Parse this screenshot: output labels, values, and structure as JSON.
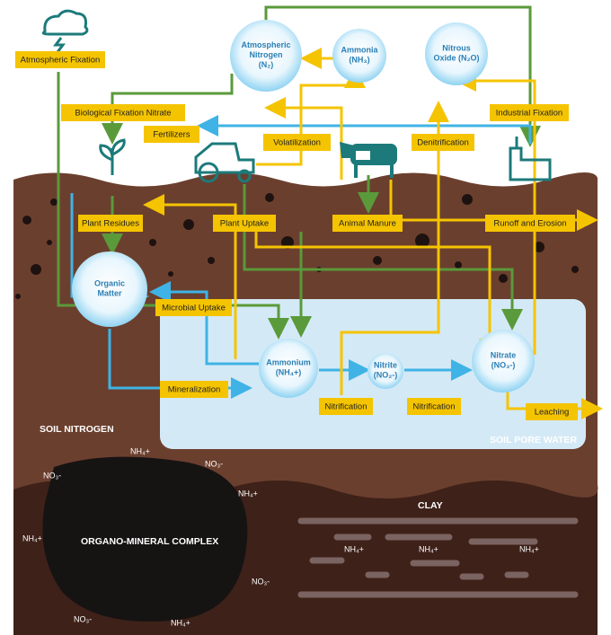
{
  "nodes": [
    {
      "label": "Atmospheric Nitrogen (N₂)"
    },
    {
      "label": "Ammonia (NH₃)"
    },
    {
      "label": "Nitrous Oxide (N₂O)"
    },
    {
      "label": "Organic Matter"
    },
    {
      "label": "Ammonium (NH₄+)"
    },
    {
      "label": "Nitrite (NO₂-)"
    },
    {
      "label": "Nitrate (NO₃-)"
    }
  ],
  "processes": [
    "Atmospheric Fixation",
    "Biological Fixation Nitrate",
    "Fertilizers",
    "Volatilization",
    "Denitrification",
    "Industrial Fixation",
    "Plant Residues",
    "Plant Uptake",
    "Animal Manure",
    "Runoff and Erosion",
    "Microbial Uptake",
    "Mineralization",
    "Nitrification",
    "Nitrification",
    "Leaching"
  ],
  "regions": [
    "SOIL NITROGEN",
    "SOIL PORE WATER",
    "CLAY",
    "ORGANO-MINERAL COMPLEX"
  ],
  "ions": [
    "NH₄+",
    "NO₃-",
    "NO₃-",
    "NH₄+",
    "NH₄+",
    "NH₄+",
    "NH₄+",
    "NH₄+",
    "NO₃-",
    "NO₃-",
    "NH₄+"
  ]
}
